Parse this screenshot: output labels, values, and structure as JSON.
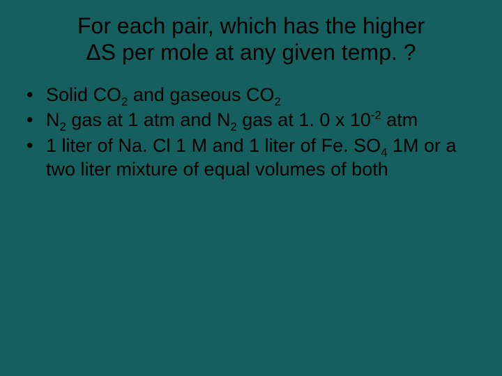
{
  "slide": {
    "background_color": "#155f5f",
    "text_color": "#000000",
    "font_family": "Arial",
    "title": {
      "line1": "For each pair, which has the higher",
      "line2": "ΔS  per mole at any given temp. ?",
      "fontsize": 32,
      "align": "center"
    },
    "bullets": {
      "fontsize": 27,
      "items": [
        {
          "pre1": "Solid CO",
          "sub1": "2",
          "mid1": " and gaseous CO",
          "sub2": "2",
          "post": ""
        },
        {
          "pre1": "N",
          "sub1": "2",
          "mid1": " gas at 1 atm and N",
          "sub2": "2",
          "mid2": " gas at 1. 0 x 10",
          "sup1": "-2",
          "post": " atm"
        },
        {
          "pre1": "1 liter of Na. Cl 1 M and 1 liter of Fe. SO",
          "sub1": "4",
          "mid1": " 1M or a two liter mixture of equal volumes of both"
        }
      ]
    }
  }
}
